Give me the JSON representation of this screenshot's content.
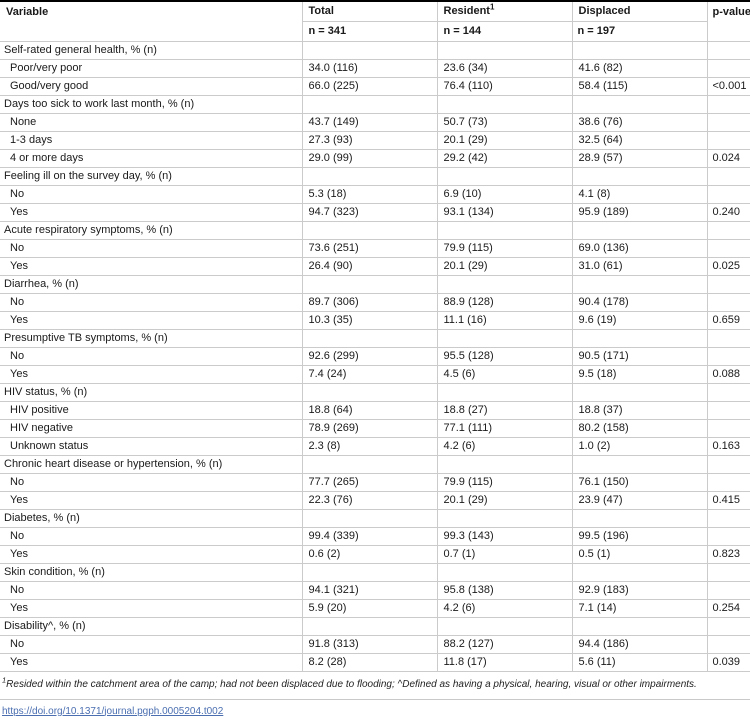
{
  "colors": {
    "top_border": "#000000",
    "grid_border": "#cbcbcb",
    "link": "#4a6eb0"
  },
  "table": {
    "header": {
      "variable": "Variable",
      "total": "Total",
      "total_n": "n = 341",
      "resident": "Resident",
      "resident_sup": "1",
      "resident_n": "n = 144",
      "displaced": "Displaced",
      "displaced_n": "n = 197",
      "pvalue": "p-value"
    },
    "rows": [
      {
        "type": "category",
        "label": "Self-rated general health, % (n)",
        "total": "",
        "resident": "",
        "displaced": "",
        "p": ""
      },
      {
        "type": "item",
        "label": "Poor/very poor",
        "total": "34.0 (116)",
        "resident": "23.6 (34)",
        "displaced": "41.6 (82)",
        "p": ""
      },
      {
        "type": "item",
        "label": "Good/very good",
        "total": "66.0 (225)",
        "resident": "76.4 (110)",
        "displaced": "58.4 (115)",
        "p": "<0.001"
      },
      {
        "type": "category",
        "label": "Days too sick to work last month, % (n)",
        "total": "",
        "resident": "",
        "displaced": "",
        "p": ""
      },
      {
        "type": "item",
        "label": "None",
        "total": "43.7 (149)",
        "resident": "50.7 (73)",
        "displaced": "38.6 (76)",
        "p": ""
      },
      {
        "type": "item",
        "label": "1-3 days",
        "total": "27.3 (93)",
        "resident": "20.1 (29)",
        "displaced": "32.5 (64)",
        "p": ""
      },
      {
        "type": "item",
        "label": "4 or more days",
        "total": "29.0 (99)",
        "resident": "29.2 (42)",
        "displaced": "28.9 (57)",
        "p": "0.024"
      },
      {
        "type": "category",
        "label": "Feeling ill on the survey day, % (n)",
        "total": "",
        "resident": "",
        "displaced": "",
        "p": ""
      },
      {
        "type": "item",
        "label": "No",
        "total": "5.3 (18)",
        "resident": "6.9 (10)",
        "displaced": "4.1 (8)",
        "p": ""
      },
      {
        "type": "item",
        "label": "Yes",
        "total": "94.7 (323)",
        "resident": "93.1 (134)",
        "displaced": "95.9 (189)",
        "p": "0.240"
      },
      {
        "type": "category",
        "label": "Acute respiratory symptoms, % (n)",
        "total": "",
        "resident": "",
        "displaced": "",
        "p": ""
      },
      {
        "type": "item",
        "label": "No",
        "total": "73.6 (251)",
        "resident": "79.9 (115)",
        "displaced": "69.0 (136)",
        "p": ""
      },
      {
        "type": "item",
        "label": "Yes",
        "total": "26.4 (90)",
        "resident": "20.1 (29)",
        "displaced": "31.0 (61)",
        "p": "0.025"
      },
      {
        "type": "category",
        "label": "Diarrhea, % (n)",
        "total": "",
        "resident": "",
        "displaced": "",
        "p": ""
      },
      {
        "type": "item",
        "label": "No",
        "total": "89.7 (306)",
        "resident": "88.9 (128)",
        "displaced": "90.4 (178)",
        "p": ""
      },
      {
        "type": "item",
        "label": "Yes",
        "total": "10.3 (35)",
        "resident": "11.1 (16)",
        "displaced": "9.6 (19)",
        "p": "0.659"
      },
      {
        "type": "category",
        "label": "Presumptive TB symptoms, % (n)",
        "total": "",
        "resident": "",
        "displaced": "",
        "p": ""
      },
      {
        "type": "item",
        "label": "No",
        "total": "92.6 (299)",
        "resident": "95.5 (128)",
        "displaced": "90.5 (171)",
        "p": ""
      },
      {
        "type": "item",
        "label": "Yes",
        "total": "7.4 (24)",
        "resident": "4.5 (6)",
        "displaced": "9.5 (18)",
        "p": "0.088"
      },
      {
        "type": "category",
        "label": "HIV status, % (n)",
        "total": "",
        "resident": "",
        "displaced": "",
        "p": ""
      },
      {
        "type": "item",
        "label": "HIV positive",
        "total": "18.8 (64)",
        "resident": "18.8 (27)",
        "displaced": "18.8 (37)",
        "p": ""
      },
      {
        "type": "item",
        "label": "HIV negative",
        "total": "78.9 (269)",
        "resident": "77.1 (111)",
        "displaced": "80.2 (158)",
        "p": ""
      },
      {
        "type": "item",
        "label": "Unknown status",
        "total": "2.3 (8)",
        "resident": "4.2 (6)",
        "displaced": "1.0 (2)",
        "p": "0.163"
      },
      {
        "type": "category",
        "label": "Chronic heart disease or hypertension, % (n)",
        "total": "",
        "resident": "",
        "displaced": "",
        "p": ""
      },
      {
        "type": "item",
        "label": "No",
        "total": "77.7 (265)",
        "resident": "79.9 (115)",
        "displaced": "76.1 (150)",
        "p": ""
      },
      {
        "type": "item",
        "label": "Yes",
        "total": "22.3 (76)",
        "resident": "20.1 (29)",
        "displaced": "23.9 (47)",
        "p": "0.415"
      },
      {
        "type": "category",
        "label": "Diabetes, % (n)",
        "total": "",
        "resident": "",
        "displaced": "",
        "p": ""
      },
      {
        "type": "item",
        "label": "No",
        "total": "99.4 (339)",
        "resident": "99.3 (143)",
        "displaced": "99.5 (196)",
        "p": ""
      },
      {
        "type": "item",
        "label": "Yes",
        "total": "0.6 (2)",
        "resident": "0.7 (1)",
        "displaced": "0.5 (1)",
        "p": "0.823"
      },
      {
        "type": "category",
        "label": "Skin condition, % (n)",
        "total": "",
        "resident": "",
        "displaced": "",
        "p": ""
      },
      {
        "type": "item",
        "label": "No",
        "total": "94.1 (321)",
        "resident": "95.8 (138)",
        "displaced": "92.9 (183)",
        "p": ""
      },
      {
        "type": "item",
        "label": "Yes",
        "total": "5.9 (20)",
        "resident": "4.2 (6)",
        "displaced": "7.1 (14)",
        "p": "0.254"
      },
      {
        "type": "category",
        "label": "Disability^, % (n)",
        "total": "",
        "resident": "",
        "displaced": "",
        "p": ""
      },
      {
        "type": "item",
        "label": "No",
        "total": "91.8 (313)",
        "resident": "88.2 (127)",
        "displaced": "94.4 (186)",
        "p": ""
      },
      {
        "type": "item",
        "label": "Yes",
        "total": "8.2 (28)",
        "resident": "11.8 (17)",
        "displaced": "5.6 (11)",
        "p": "0.039"
      }
    ]
  },
  "footnote": {
    "sup1": "1",
    "text": "Resided within the catchment area of the camp; had not been displaced due to flooding; ^Defined as having a physical, hearing, visual or other impairments."
  },
  "doi": {
    "text": "https://doi.org/10.1371/journal.pgph.0005204.t002",
    "href": "https://doi.org/10.1371/journal.pgph.0005204.t002"
  }
}
